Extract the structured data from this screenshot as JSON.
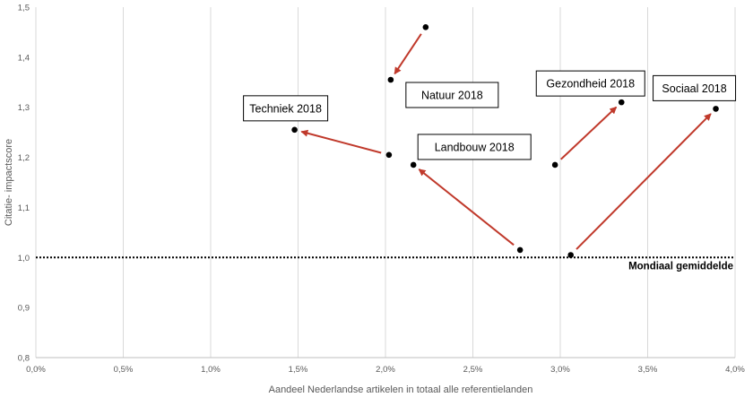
{
  "chart_data": {
    "type": "scatter",
    "title": "",
    "xlabel": "Aandeel Nederlandse artikelen in totaal alle referentielanden",
    "ylabel": "Citatie- impactscore",
    "xlim": [
      0.0,
      0.04
    ],
    "ylim": [
      0.8,
      1.5
    ],
    "x_ticks": [
      0.0,
      0.005,
      0.01,
      0.015,
      0.02,
      0.025,
      0.03,
      0.035,
      0.04
    ],
    "x_tick_labels": [
      "0,0%",
      "0,5%",
      "1,0%",
      "1,5%",
      "2,0%",
      "2,5%",
      "3,0%",
      "3,5%",
      "4,0%"
    ],
    "y_ticks": [
      0.8,
      0.9,
      1.0,
      1.1,
      1.2,
      1.3,
      1.4,
      1.5
    ],
    "y_tick_labels": [
      "0,8",
      "0,9",
      "1,0",
      "1,1",
      "1,2",
      "1,3",
      "1,4",
      "1,5"
    ],
    "grid": "vertical",
    "reference_line": {
      "y": 1.0,
      "label": "Mondiaal gemiddelde",
      "style": "dotted"
    },
    "series": [
      {
        "name": "Natuur 2018",
        "from": {
          "x": 0.0223,
          "y": 1.46
        },
        "to": {
          "x": 0.0203,
          "y": 1.355
        }
      },
      {
        "name": "Techniek 2018",
        "from": {
          "x": 0.0202,
          "y": 1.205
        },
        "to": {
          "x": 0.0148,
          "y": 1.255
        }
      },
      {
        "name": "Landbouw 2018",
        "from": {
          "x": 0.0277,
          "y": 1.015
        },
        "to": {
          "x": 0.0216,
          "y": 1.185
        }
      },
      {
        "name": "Gezondheid 2018",
        "from": {
          "x": 0.0297,
          "y": 1.185
        },
        "to": {
          "x": 0.0335,
          "y": 1.31
        }
      },
      {
        "name": "Sociaal 2018",
        "from": {
          "x": 0.0306,
          "y": 1.005
        },
        "to": {
          "x": 0.0389,
          "y": 1.297
        }
      }
    ],
    "colors": {
      "arrow": "#c0392b",
      "point": "#000000",
      "grid": "#d9d9d9"
    }
  }
}
